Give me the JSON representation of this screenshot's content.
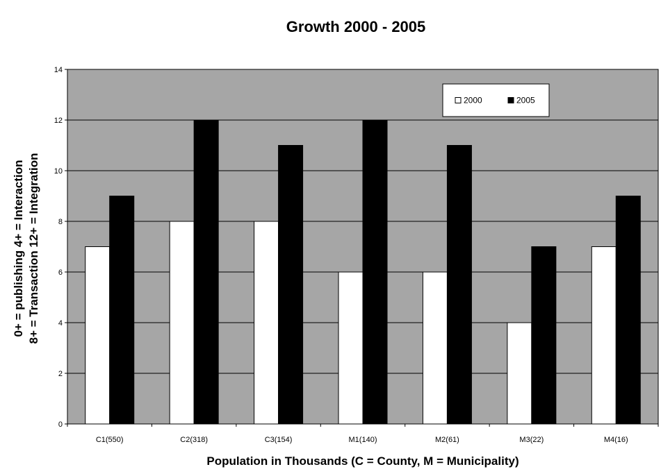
{
  "chart_data": {
    "type": "bar",
    "title": "Growth 2000 - 2005",
    "xlabel": "Population in Thousands (C = County, M = Municipality)",
    "ylabel_lines": [
      "0+ = publishing 4+ = Interaction",
      "8+ = Transaction 12+ = Integration"
    ],
    "categories": [
      "C1(550)",
      "C2(318)",
      "C3(154)",
      "M1(140)",
      "M2(61)",
      "M3(22)",
      "M4(16)"
    ],
    "series": [
      {
        "name": "2000",
        "color": "#ffffff",
        "values": [
          7,
          8,
          8,
          6,
          6,
          4,
          7
        ]
      },
      {
        "name": "2005",
        "color": "#000000",
        "values": [
          9,
          12,
          11,
          12,
          11,
          7,
          9
        ]
      }
    ],
    "ylim": [
      0,
      14
    ],
    "yticks": [
      0,
      2,
      4,
      6,
      8,
      10,
      12,
      14
    ],
    "grid": true,
    "legend_position": "top-right",
    "plot_background": "#a6a6a6"
  }
}
